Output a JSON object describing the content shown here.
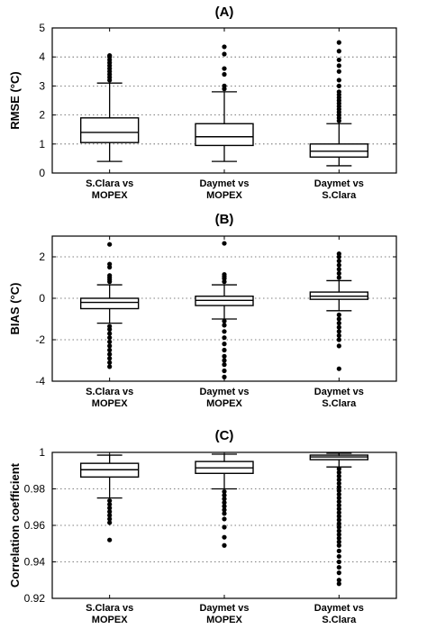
{
  "chart_data": [
    {
      "type": "box",
      "title": "(A)",
      "ylabel": "RMSE (°C)",
      "ylim": [
        0,
        5
      ],
      "yticks": [
        0,
        1,
        2,
        3,
        4,
        5
      ],
      "grid": "y-dotted",
      "categories": [
        [
          "S.Clara vs",
          "MOPEX"
        ],
        [
          "Daymet vs",
          "MOPEX"
        ],
        [
          "Daymet vs",
          "S.Clara"
        ]
      ],
      "boxes": [
        {
          "whisker_low": 0.4,
          "q1": 1.05,
          "median": 1.4,
          "q3": 1.9,
          "whisker_high": 3.1,
          "outliers": [
            3.2,
            3.3,
            3.4,
            3.5,
            3.6,
            3.7,
            3.8,
            3.9,
            4.0,
            4.05
          ]
        },
        {
          "whisker_low": 0.4,
          "q1": 0.95,
          "median": 1.25,
          "q3": 1.7,
          "whisker_high": 2.8,
          "outliers": [
            2.9,
            3.0,
            3.4,
            3.6,
            4.1,
            4.35
          ]
        },
        {
          "whisker_low": 0.25,
          "q1": 0.55,
          "median": 0.75,
          "q3": 1.0,
          "whisker_high": 1.7,
          "outliers": [
            1.8,
            1.9,
            2.0,
            2.1,
            2.2,
            2.3,
            2.4,
            2.5,
            2.6,
            2.7,
            2.8,
            3.0,
            3.2,
            3.5,
            3.7,
            3.9,
            4.2,
            4.5
          ]
        }
      ]
    },
    {
      "type": "box",
      "title": "(B)",
      "ylabel": "BIAS (°C)",
      "ylim": [
        -4,
        3
      ],
      "yticks": [
        -4,
        -2,
        0,
        2
      ],
      "grid": "y-dotted",
      "categories": [
        [
          "S.Clara vs",
          "MOPEX"
        ],
        [
          "Daymet vs",
          "MOPEX"
        ],
        [
          "Daymet vs",
          "S.Clara"
        ]
      ],
      "boxes": [
        {
          "whisker_low": -1.2,
          "q1": -0.5,
          "median": -0.2,
          "q3": 0.0,
          "whisker_high": 0.65,
          "outliers": [
            -3.3,
            -3.1,
            -2.9,
            -2.7,
            -2.5,
            -2.3,
            -2.1,
            -1.9,
            -1.7,
            -1.5,
            -1.35,
            0.8,
            0.9,
            1.0,
            1.1,
            1.5,
            1.65,
            2.6
          ]
        },
        {
          "whisker_low": -1.0,
          "q1": -0.35,
          "median": -0.1,
          "q3": 0.1,
          "whisker_high": 0.65,
          "outliers": [
            -3.8,
            -3.5,
            -3.2,
            -3.0,
            -2.8,
            -2.5,
            -2.2,
            -1.9,
            -1.6,
            -1.3,
            -1.1,
            0.8,
            0.95,
            1.05,
            1.15,
            2.65
          ]
        },
        {
          "whisker_low": -0.6,
          "q1": -0.05,
          "median": 0.1,
          "q3": 0.3,
          "whisker_high": 0.85,
          "outliers": [
            -3.4,
            -2.3,
            -2.0,
            -1.8,
            -1.6,
            -1.4,
            -1.2,
            -1.0,
            -0.8,
            1.0,
            1.2,
            1.4,
            1.6,
            1.8,
            2.0,
            2.15
          ]
        }
      ]
    },
    {
      "type": "box",
      "title": "(C)",
      "ylabel": "Correlation coefficient",
      "ylim": [
        0.92,
        1.0
      ],
      "yticks": [
        0.92,
        0.94,
        0.96,
        0.98,
        1
      ],
      "grid": "y-dotted",
      "categories": [
        [
          "S.Clara vs",
          "MOPEX"
        ],
        [
          "Daymet vs",
          "MOPEX"
        ],
        [
          "Daymet vs",
          "S.Clara"
        ]
      ],
      "boxes": [
        {
          "whisker_low": 0.975,
          "q1": 0.9865,
          "median": 0.9905,
          "q3": 0.994,
          "whisker_high": 0.9985,
          "outliers": [
            0.9735,
            0.9715,
            0.9695,
            0.9675,
            0.9655,
            0.9635,
            0.9615,
            0.952
          ]
        },
        {
          "whisker_low": 0.98,
          "q1": 0.9885,
          "median": 0.9915,
          "q3": 0.995,
          "whisker_high": 0.999,
          "outliers": [
            0.9785,
            0.9765,
            0.9745,
            0.9725,
            0.9705,
            0.9685,
            0.9665,
            0.9635,
            0.959,
            0.9535,
            0.949
          ]
        },
        {
          "whisker_low": 0.992,
          "q1": 0.996,
          "median": 0.9975,
          "q3": 0.9985,
          "whisker_high": 0.9995,
          "outliers": [
            0.991,
            0.989,
            0.987,
            0.985,
            0.983,
            0.981,
            0.979,
            0.977,
            0.975,
            0.973,
            0.971,
            0.969,
            0.967,
            0.965,
            0.963,
            0.961,
            0.959,
            0.957,
            0.955,
            0.953,
            0.951,
            0.949,
            0.946,
            0.943,
            0.94,
            0.937,
            0.934,
            0.93,
            0.928
          ]
        }
      ]
    }
  ]
}
